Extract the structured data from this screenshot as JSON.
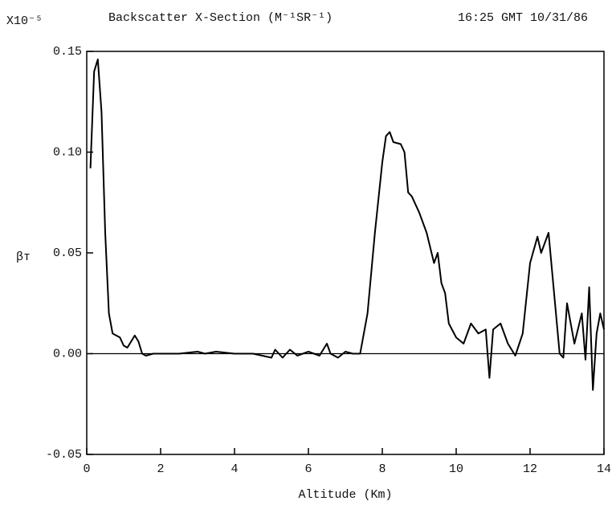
{
  "chart_data": {
    "type": "line",
    "title": "Backscatter X-Section (M⁻¹SR⁻¹)",
    "subtitle": "16:25 GMT 10/31/86",
    "y_multiplier": "X10⁻⁵",
    "ylabel": "βᴛ",
    "xlabel": "Altitude (Km)",
    "xlim": [
      0,
      14
    ],
    "xticks": [
      0,
      2,
      4,
      6,
      8,
      10,
      12,
      14
    ],
    "ylim": [
      -0.05,
      0.15
    ],
    "yticks": [
      {
        "value": -0.05,
        "label": "-0.05"
      },
      {
        "value": 0,
        "label": "0.00"
      },
      0.05,
      {
        "value": 0.1,
        "label": "0.10"
      },
      0.15
    ],
    "series": [
      {
        "color": "#000000",
        "x": [
          0.1,
          0.2,
          0.3,
          0.4,
          0.5,
          0.6,
          0.7,
          0.9,
          1.0,
          1.1,
          1.3,
          1.4,
          1.5,
          1.6,
          1.8,
          2.5,
          3.0,
          3.2,
          3.5,
          4.0,
          4.5,
          5.0,
          5.1,
          5.3,
          5.5,
          5.7,
          6.0,
          6.3,
          6.5,
          6.6,
          6.8,
          7.0,
          7.2,
          7.4,
          7.6,
          7.8,
          8.0,
          8.1,
          8.2,
          8.3,
          8.5,
          8.6,
          8.7,
          8.8,
          9.0,
          9.2,
          9.4,
          9.5,
          9.6,
          9.7,
          9.8,
          10.0,
          10.2,
          10.4,
          10.6,
          10.8,
          10.9,
          11.0,
          11.2,
          11.4,
          11.6,
          11.8,
          12.0,
          12.2,
          12.3,
          12.5,
          12.7,
          12.8,
          12.9,
          13.0,
          13.2,
          13.4,
          13.5,
          13.6,
          13.7,
          13.8,
          13.9,
          14.0
        ],
        "values": [
          0.092,
          0.14,
          0.146,
          0.12,
          0.06,
          0.02,
          0.01,
          0.008,
          0.004,
          0.003,
          0.009,
          0.006,
          0.0,
          -0.001,
          0.0,
          0.0,
          0.001,
          0.0,
          0.001,
          0.0,
          0.0,
          -0.002,
          0.002,
          -0.002,
          0.002,
          -0.001,
          0.001,
          -0.001,
          0.005,
          0.0,
          -0.002,
          0.001,
          0.0,
          0.0,
          0.02,
          0.06,
          0.095,
          0.108,
          0.11,
          0.105,
          0.104,
          0.1,
          0.08,
          0.078,
          0.07,
          0.06,
          0.045,
          0.05,
          0.035,
          0.03,
          0.015,
          0.008,
          0.005,
          0.015,
          0.01,
          0.012,
          -0.012,
          0.012,
          0.015,
          0.005,
          -0.001,
          0.01,
          0.045,
          0.058,
          0.05,
          0.06,
          0.02,
          0.0,
          -0.002,
          0.025,
          0.005,
          0.02,
          -0.003,
          0.033,
          -0.018,
          0.01,
          0.02,
          0.012
        ]
      }
    ]
  }
}
